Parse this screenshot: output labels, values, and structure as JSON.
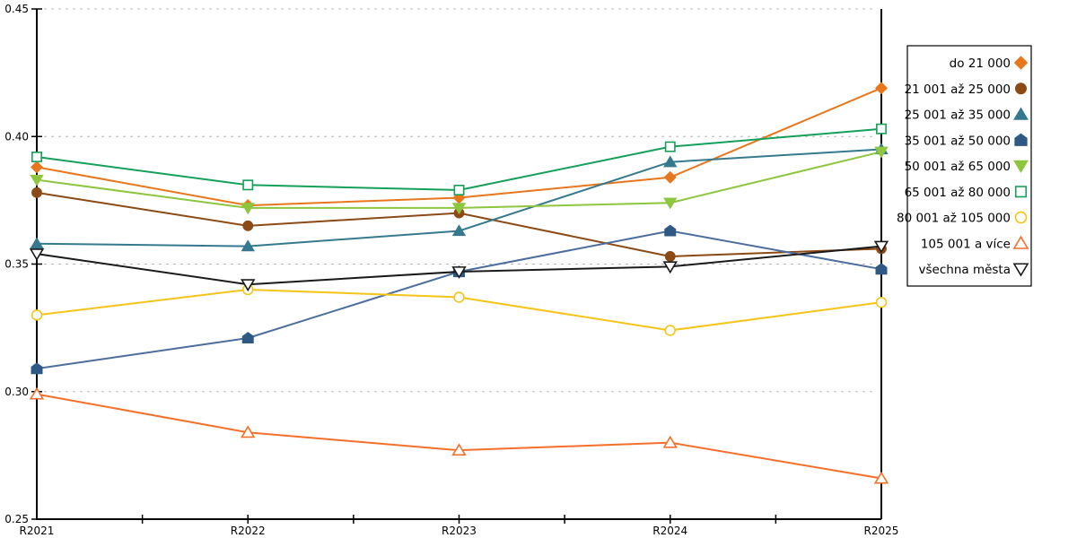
{
  "chart_data": {
    "type": "line",
    "title": "",
    "xlabel": "",
    "ylabel": "",
    "x_labels": [
      "R2021",
      "R2022",
      "R2023",
      "R2024",
      "R2025"
    ],
    "ylim": [
      0.25,
      0.45
    ],
    "y_ticks": [
      0.25,
      0.3,
      0.35,
      0.4,
      0.45
    ],
    "y_tick_labels": [
      "0.25",
      "0.30",
      "0.35",
      "0.40",
      "0.45"
    ],
    "grid": "horizontal-dashed",
    "grid_color": "#b5b5b5",
    "axis_color": "#000000",
    "legend_position": "right-outside",
    "legend_border_color": "#000000",
    "series": [
      {
        "name": "do 21 000",
        "color": "#E8761D",
        "marker": "diamond",
        "fill": "filled",
        "values": [
          0.388,
          0.373,
          0.376,
          0.384,
          0.419
        ]
      },
      {
        "name": "21 001 až 25 000",
        "color": "#8C4A15",
        "marker": "circle",
        "fill": "filled",
        "values": [
          0.378,
          0.365,
          0.37,
          0.353,
          0.356
        ]
      },
      {
        "name": "25 001 až 35 000",
        "color": "#35798F",
        "marker": "triangle-up",
        "fill": "filled",
        "values": [
          0.358,
          0.357,
          0.363,
          0.39,
          0.395
        ]
      },
      {
        "name": "35 001 až 50 000",
        "color": "#2E5985",
        "line_color": "#4C6E9E",
        "marker": "pentagon",
        "fill": "filled",
        "values": [
          0.309,
          0.321,
          0.347,
          0.363,
          0.348
        ]
      },
      {
        "name": "50 001 až 65 000",
        "color": "#8DC63F",
        "marker": "triangle-down",
        "fill": "filled",
        "values": [
          0.383,
          0.372,
          0.372,
          0.374,
          0.394
        ]
      },
      {
        "name": "65 001 až 80 000",
        "color": "#15A05A",
        "marker": "square",
        "fill": "open",
        "values": [
          0.392,
          0.381,
          0.379,
          0.396,
          0.403
        ]
      },
      {
        "name": "80 001 až 105 000",
        "color": "#F5C418",
        "marker": "circle",
        "fill": "open",
        "values": [
          0.33,
          0.34,
          0.337,
          0.324,
          0.335
        ]
      },
      {
        "name": "105 001 a více",
        "color": "#F4702A",
        "marker": "triangle-up",
        "fill": "open",
        "values": [
          0.299,
          0.284,
          0.277,
          0.28,
          0.266
        ]
      },
      {
        "name": "všechna města",
        "color": "#1A1A1A",
        "marker": "triangle-down",
        "fill": "open",
        "values": [
          0.354,
          0.342,
          0.347,
          0.349,
          0.357
        ]
      }
    ]
  }
}
